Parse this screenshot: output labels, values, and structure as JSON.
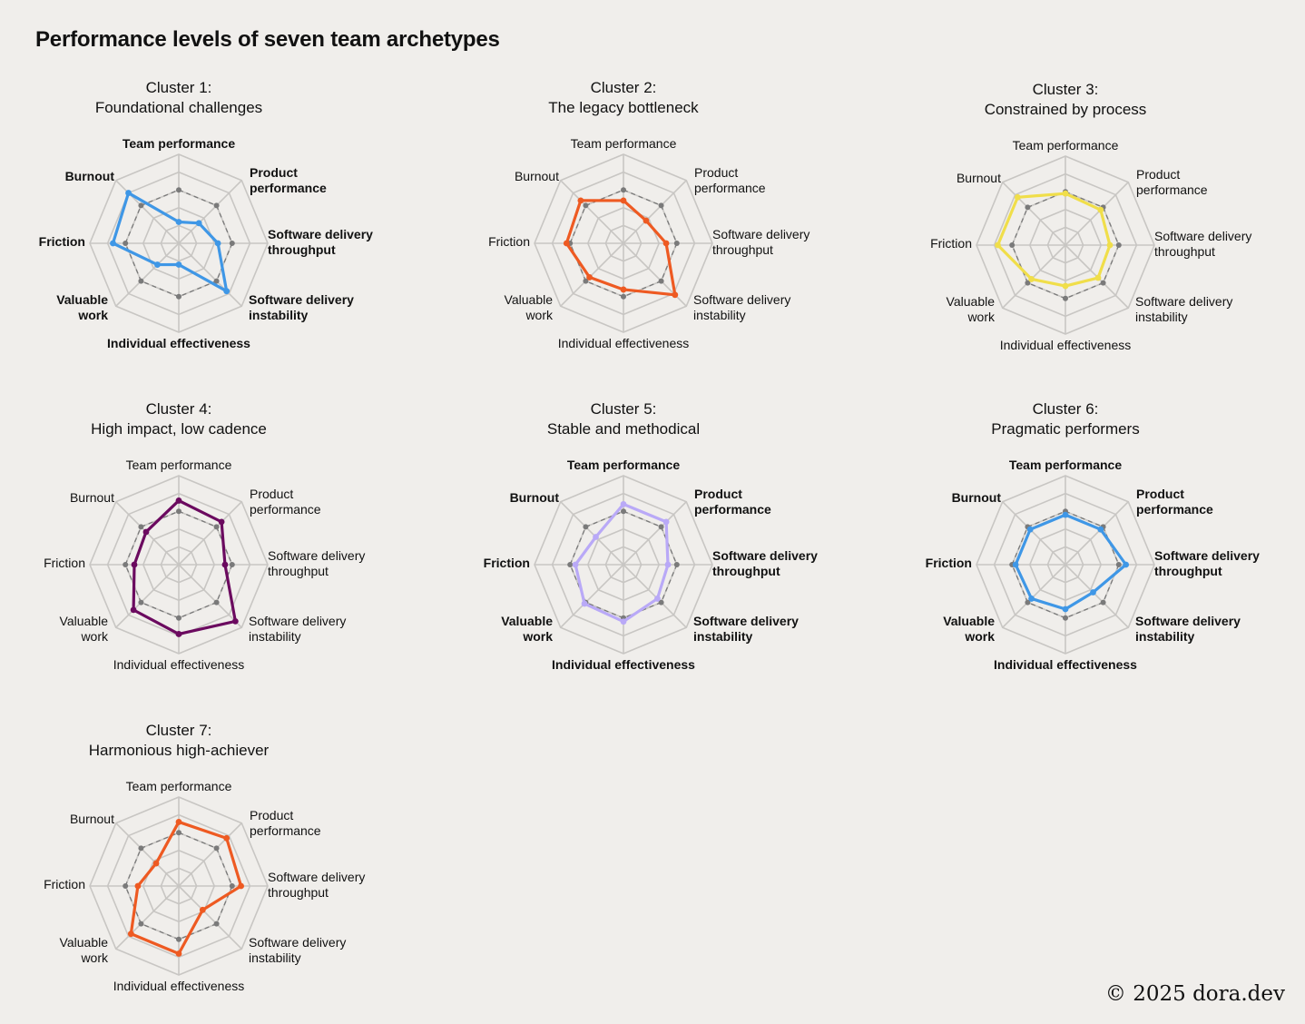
{
  "title": "Performance levels of seven team archetypes",
  "copyright": "© 2025 dora.dev",
  "colors": {
    "background": "#f0eeeb",
    "grid": "#c8c6c3",
    "reference": "#7a7a7a",
    "blue": "#3f97e6",
    "orange": "#ee5a22",
    "yellow": "#f0de4a",
    "purple": "#6b0a5f",
    "lavender": "#b9a9f7"
  },
  "chart_data": [
    {
      "type": "radar",
      "title_line1": "Cluster 1:",
      "title_line2": "Foundational challenges",
      "color": "#3f97e6",
      "axes": [
        "Team performance",
        "Product performance",
        "Software delivery throughput",
        "Software delivery instability",
        "Individual effectiveness",
        "Valuable work",
        "Friction",
        "Burnout"
      ],
      "bold_axes": [
        true,
        true,
        true,
        true,
        true,
        true,
        true,
        true
      ],
      "reference_values": [
        3,
        3,
        3,
        3,
        3,
        3,
        3,
        3
      ],
      "values": [
        1.2,
        1.6,
        2.2,
        3.8,
        1.2,
        1.7,
        3.7,
        4.0
      ],
      "rlim": [
        0,
        5
      ]
    },
    {
      "type": "radar",
      "title_line1": "Cluster 2:",
      "title_line2": "The legacy bottleneck",
      "color": "#ee5a22",
      "axes": [
        "Team performance",
        "Product performance",
        "Software delivery throughput",
        "Software delivery instability",
        "Individual effectiveness",
        "Valuable work",
        "Friction",
        "Burnout"
      ],
      "bold_axes": [
        false,
        false,
        false,
        false,
        false,
        false,
        false,
        false
      ],
      "reference_values": [
        3,
        3,
        3,
        3,
        3,
        3,
        3,
        3
      ],
      "values": [
        2.4,
        1.8,
        2.4,
        4.1,
        2.6,
        2.7,
        3.2,
        3.4
      ],
      "rlim": [
        0,
        5
      ]
    },
    {
      "type": "radar",
      "title_line1": "Cluster 3:",
      "title_line2": "Constrained by process",
      "color": "#f0de4a",
      "axes": [
        "Team performance",
        "Product performance",
        "Software delivery throughput",
        "Software delivery instability",
        "Individual effectiveness",
        "Valuable work",
        "Friction",
        "Burnout"
      ],
      "bold_axes": [
        false,
        false,
        false,
        false,
        false,
        false,
        false,
        false
      ],
      "reference_values": [
        3,
        3,
        3,
        3,
        3,
        3,
        3,
        3
      ],
      "values": [
        2.9,
        2.8,
        2.5,
        2.6,
        2.3,
        2.7,
        3.8,
        3.8
      ],
      "rlim": [
        0,
        5
      ]
    },
    {
      "type": "radar",
      "title_line1": "Cluster 4:",
      "title_line2": "High impact, low cadence",
      "color": "#6b0a5f",
      "axes": [
        "Team performance",
        "Product performance",
        "Software delivery throughput",
        "Software delivery instability",
        "Individual effectiveness",
        "Valuable work",
        "Friction",
        "Burnout"
      ],
      "bold_axes": [
        false,
        false,
        false,
        false,
        false,
        false,
        false,
        false
      ],
      "reference_values": [
        3,
        3,
        3,
        3,
        3,
        3,
        3,
        3
      ],
      "values": [
        3.6,
        3.4,
        2.6,
        4.5,
        3.9,
        3.6,
        2.5,
        2.6
      ],
      "rlim": [
        0,
        5
      ]
    },
    {
      "type": "radar",
      "title_line1": "Cluster 5:",
      "title_line2": "Stable and methodical",
      "color": "#b9a9f7",
      "axes": [
        "Team performance",
        "Product performance",
        "Software delivery throughput",
        "Software delivery instability",
        "Individual effectiveness",
        "Valuable work",
        "Friction",
        "Burnout"
      ],
      "bold_axes": [
        true,
        true,
        true,
        true,
        true,
        true,
        true,
        true
      ],
      "reference_values": [
        3,
        3,
        3,
        3,
        3,
        3,
        3,
        3
      ],
      "values": [
        3.4,
        3.4,
        2.5,
        2.7,
        3.2,
        3.1,
        2.7,
        2.2
      ],
      "rlim": [
        0,
        5
      ]
    },
    {
      "type": "radar",
      "title_line1": "Cluster 6:",
      "title_line2": "Pragmatic performers",
      "color": "#3f97e6",
      "axes": [
        "Team performance",
        "Product performance",
        "Software delivery throughput",
        "Software delivery instability",
        "Individual effectiveness",
        "Valuable work",
        "Friction",
        "Burnout"
      ],
      "bold_axes": [
        true,
        true,
        true,
        true,
        true,
        true,
        true,
        true
      ],
      "reference_values": [
        3,
        3,
        3,
        3,
        3,
        3,
        3,
        3
      ],
      "values": [
        2.8,
        2.8,
        3.4,
        2.2,
        2.5,
        2.7,
        2.8,
        2.8
      ],
      "rlim": [
        0,
        5
      ]
    },
    {
      "type": "radar",
      "title_line1": "Cluster 7:",
      "title_line2": "Harmonious high-achiever",
      "color": "#ee5a22",
      "axes": [
        "Team performance",
        "Product performance",
        "Software delivery throughput",
        "Software delivery instability",
        "Individual effectiveness",
        "Valuable work",
        "Friction",
        "Burnout"
      ],
      "bold_axes": [
        false,
        false,
        false,
        false,
        false,
        false,
        false,
        false
      ],
      "reference_values": [
        3,
        3,
        3,
        3,
        3,
        3,
        3,
        3
      ],
      "values": [
        3.6,
        3.8,
        3.5,
        1.9,
        3.8,
        3.8,
        2.3,
        1.8
      ],
      "rlim": [
        0,
        5
      ]
    }
  ]
}
